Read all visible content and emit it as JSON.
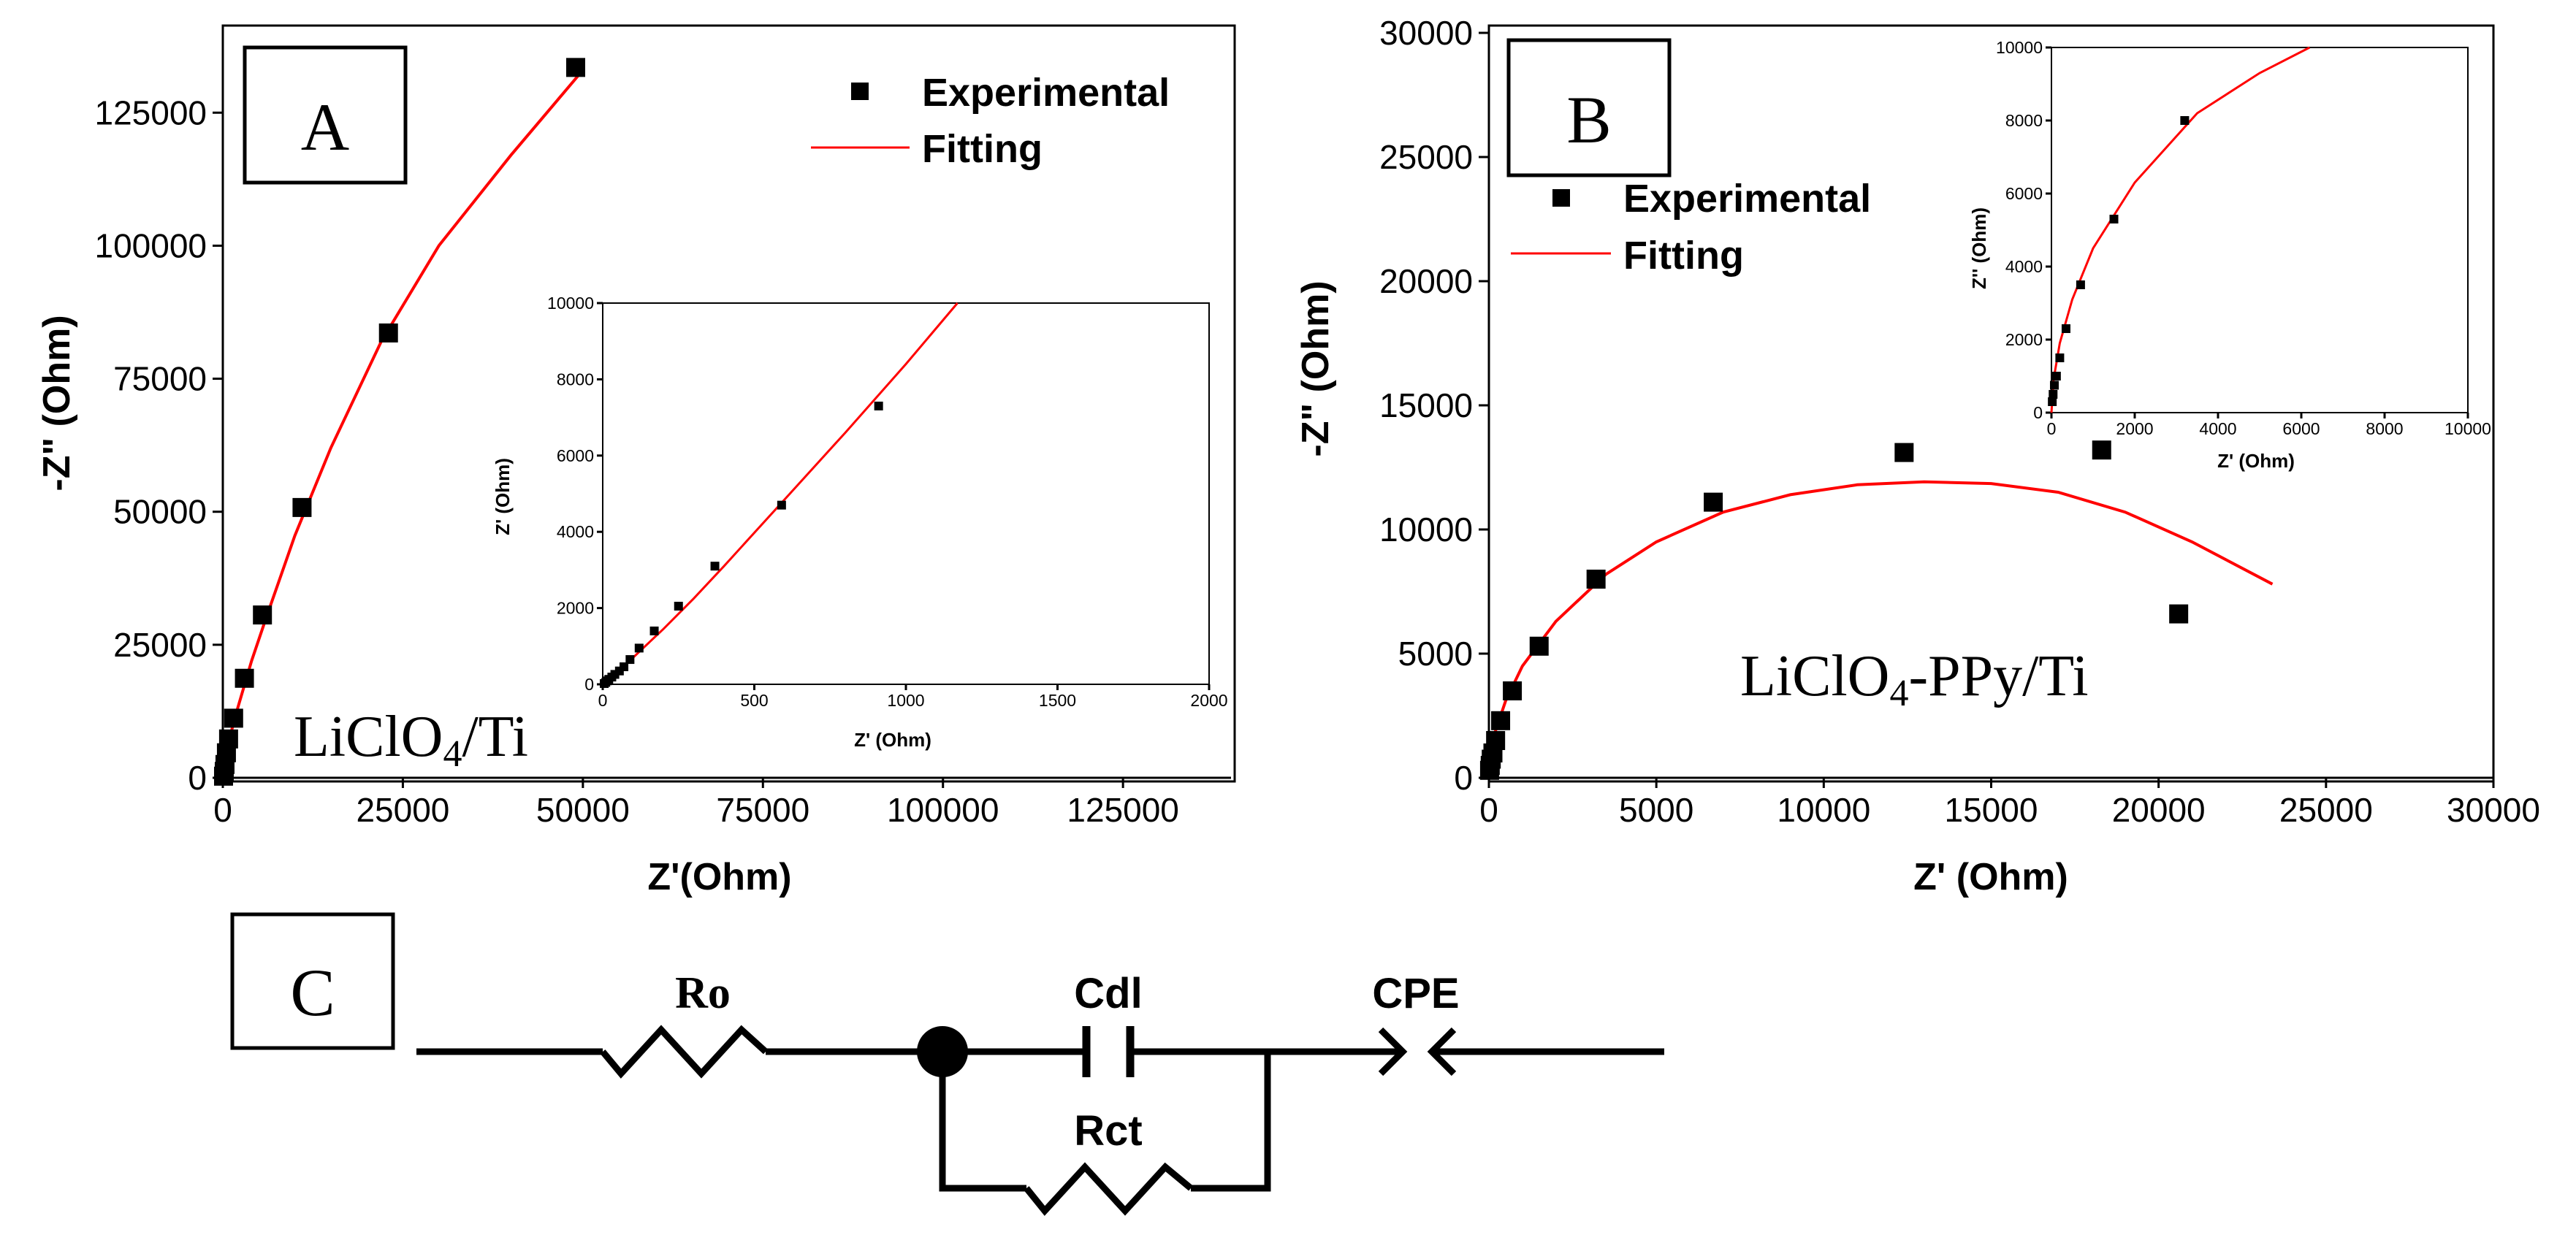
{
  "chart_data": [
    {
      "panel": "A",
      "type": "scatter",
      "sample_label": "LiClO",
      "sample_sub": "4",
      "sample_suffix": "/Ti",
      "xlabel": "Z'(Ohm)",
      "ylabel": "-Z\" (Ohm)",
      "xlim": [
        0,
        140000
      ],
      "ylim": [
        0,
        140000
      ],
      "xticks": [
        0,
        25000,
        50000,
        75000,
        100000,
        125000
      ],
      "yticks": [
        0,
        25000,
        50000,
        75000,
        100000,
        125000
      ],
      "legend": [
        "Experimental",
        "Fitting"
      ],
      "series": [
        {
          "name": "Experimental",
          "kind": "markers",
          "x": [
            100,
            200,
            300,
            500,
            800,
            1500,
            3000,
            5500,
            11000,
            23000,
            49000
          ],
          "y": [
            300,
            1200,
            2500,
            4700,
            7300,
            11200,
            18700,
            30600,
            50800,
            83600,
            133500
          ]
        },
        {
          "name": "Fitting",
          "kind": "line",
          "x": [
            0,
            100,
            500,
            1000,
            2000,
            4000,
            6000,
            10000,
            15000,
            22000,
            30000,
            40000,
            50000
          ],
          "y": [
            0,
            1200,
            4500,
            7800,
            12800,
            22000,
            30000,
            45500,
            62000,
            82000,
            100000,
            117000,
            133000
          ]
        }
      ],
      "inset": {
        "xlabel": "Z' (Ohm)",
        "ylabel": "Z' (Ohm)",
        "xlim": [
          0,
          2000
        ],
        "ylim": [
          0,
          10000
        ],
        "xticks": [
          0,
          500,
          1000,
          1500,
          2000
        ],
        "yticks": [
          0,
          2000,
          4000,
          6000,
          8000,
          10000
        ],
        "series": [
          {
            "name": "Experimental",
            "kind": "markers",
            "x": [
              5,
              10,
              15,
              20,
              30,
              40,
              55,
              70,
              90,
              120,
              170,
              250,
              370,
              590,
              910
            ],
            "y": [
              20,
              50,
              90,
              130,
              190,
              260,
              350,
              460,
              650,
              950,
              1400,
              2050,
              3100,
              4700,
              7300
            ]
          },
          {
            "name": "Fitting",
            "kind": "line",
            "x": [
              0,
              20,
              50,
              100,
              200,
              300,
              400,
              600,
              800,
              1000,
              1170
            ],
            "y": [
              0,
              150,
              360,
              700,
              1450,
              2250,
              3100,
              4850,
              6600,
              8400,
              10000
            ]
          }
        ]
      }
    },
    {
      "panel": "B",
      "type": "scatter",
      "sample_label": "LiClO",
      "sample_sub": "4",
      "sample_suffix": "-PPy/Ti",
      "xlabel": "Z' (Ohm)",
      "ylabel": "-Z\" (Ohm)",
      "xlim": [
        0,
        30000
      ],
      "ylim": [
        0,
        30000
      ],
      "xticks": [
        0,
        5000,
        10000,
        15000,
        20000,
        25000,
        30000
      ],
      "yticks": [
        0,
        5000,
        10000,
        15000,
        20000,
        25000,
        30000
      ],
      "legend": [
        "Experimental",
        "Fitting"
      ],
      "series": [
        {
          "name": "Experimental",
          "kind": "markers",
          "x": [
            20,
            40,
            70,
            120,
            200,
            350,
            700,
            1500,
            3200,
            6700,
            12400,
            18300,
            20600
          ],
          "y": [
            300,
            500,
            750,
            1000,
            1500,
            2300,
            3500,
            5300,
            8000,
            11100,
            13100,
            13200,
            6600
          ]
        },
        {
          "name": "Fitting",
          "kind": "line",
          "x": [
            0,
            50,
            200,
            500,
            1000,
            2000,
            3500,
            5000,
            7000,
            9000,
            11000,
            13000,
            15000,
            17000,
            19000,
            21000,
            23400
          ],
          "y": [
            0,
            900,
            1900,
            3100,
            4500,
            6300,
            8200,
            9500,
            10700,
            11400,
            11800,
            11920,
            11850,
            11500,
            10700,
            9500,
            7800
          ]
        }
      ],
      "inset": {
        "xlabel": "Z' (Ohm)",
        "ylabel": "Z'' (Ohm)",
        "xlim": [
          0,
          10000
        ],
        "ylim": [
          0,
          10000
        ],
        "xticks": [
          0,
          2000,
          4000,
          6000,
          8000,
          10000
        ],
        "yticks": [
          0,
          2000,
          4000,
          6000,
          8000,
          10000
        ],
        "series": [
          {
            "name": "Experimental",
            "kind": "markers",
            "x": [
              20,
              40,
              70,
              120,
              200,
              350,
              700,
              1500,
              3200
            ],
            "y": [
              300,
              500,
              750,
              1000,
              1500,
              2300,
              3500,
              5300,
              8000
            ]
          },
          {
            "name": "Fitting",
            "kind": "line",
            "x": [
              0,
              50,
              200,
              500,
              1000,
              2000,
              3500,
              5000,
              6200
            ],
            "y": [
              0,
              900,
              1900,
              3100,
              4500,
              6300,
              8200,
              9300,
              10000
            ]
          }
        ]
      }
    }
  ],
  "circuit": {
    "panel": "C",
    "labels": {
      "ro": "Ro",
      "cdl": "Cdl",
      "cpe": "CPE",
      "rct": "Rct"
    }
  },
  "colors": {
    "marker": "#000000",
    "fit": "#ff0000",
    "axis": "#000000"
  }
}
